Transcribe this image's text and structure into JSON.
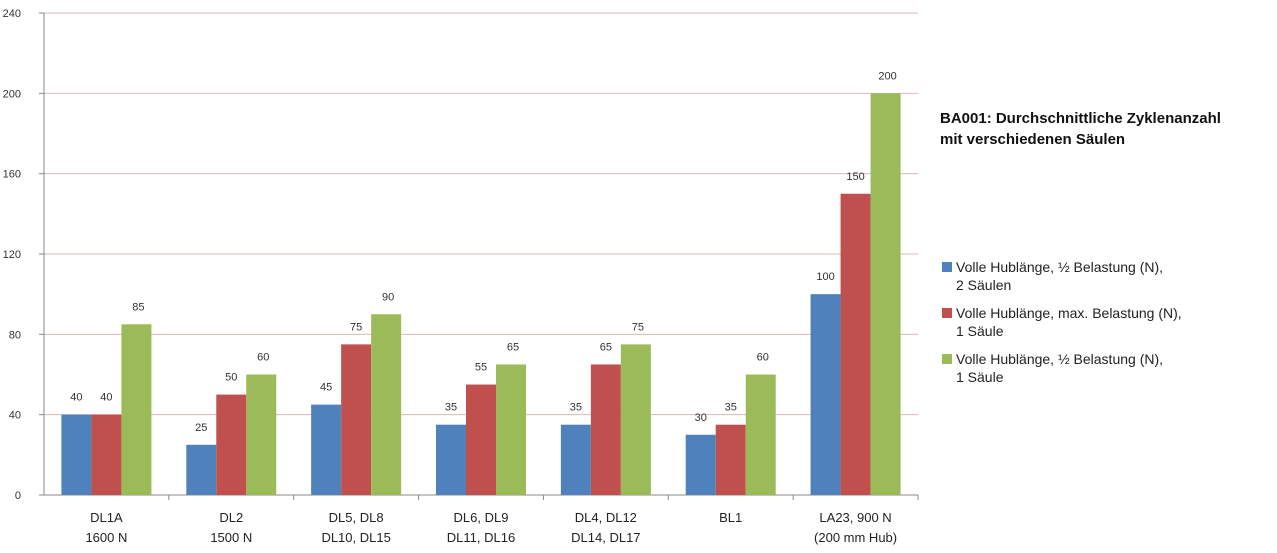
{
  "chart_data": {
    "type": "bar",
    "title_lines": [
      "BA001: Durchschnittliche Zyklenanzahl",
      "mit verschiedenen Säulen"
    ],
    "categories": [
      [
        "DL1A",
        "1600 N"
      ],
      [
        "DL2",
        "1500 N"
      ],
      [
        "DL5, DL8",
        "DL10, DL15"
      ],
      [
        "DL6, DL9",
        "DL11, DL16"
      ],
      [
        "DL4, DL12",
        "DL14, DL17"
      ],
      [
        "BL1",
        ""
      ],
      [
        "LA23, 900 N",
        "(200 mm Hub)"
      ]
    ],
    "series": [
      {
        "name_lines": [
          "Volle Hublänge, ½ Belastung (N),",
          "2 Säulen"
        ],
        "color": "#4F81BD",
        "values": [
          40,
          25,
          45,
          35,
          35,
          30,
          100
        ]
      },
      {
        "name_lines": [
          "Volle Hublänge, max. Belastung (N),",
          "1 Säule"
        ],
        "color": "#C0504D",
        "values": [
          40,
          50,
          75,
          55,
          65,
          35,
          150
        ]
      },
      {
        "name_lines": [
          "Volle Hublänge, ½ Belastung (N),",
          "1 Säule"
        ],
        "color": "#9BBB59",
        "values": [
          85,
          60,
          90,
          65,
          75,
          60,
          200
        ]
      }
    ],
    "y_ticks": [
      0,
      40,
      80,
      120,
      160,
      200,
      240
    ],
    "ylim": [
      0,
      240
    ],
    "grid": true,
    "legend_position": "right"
  }
}
